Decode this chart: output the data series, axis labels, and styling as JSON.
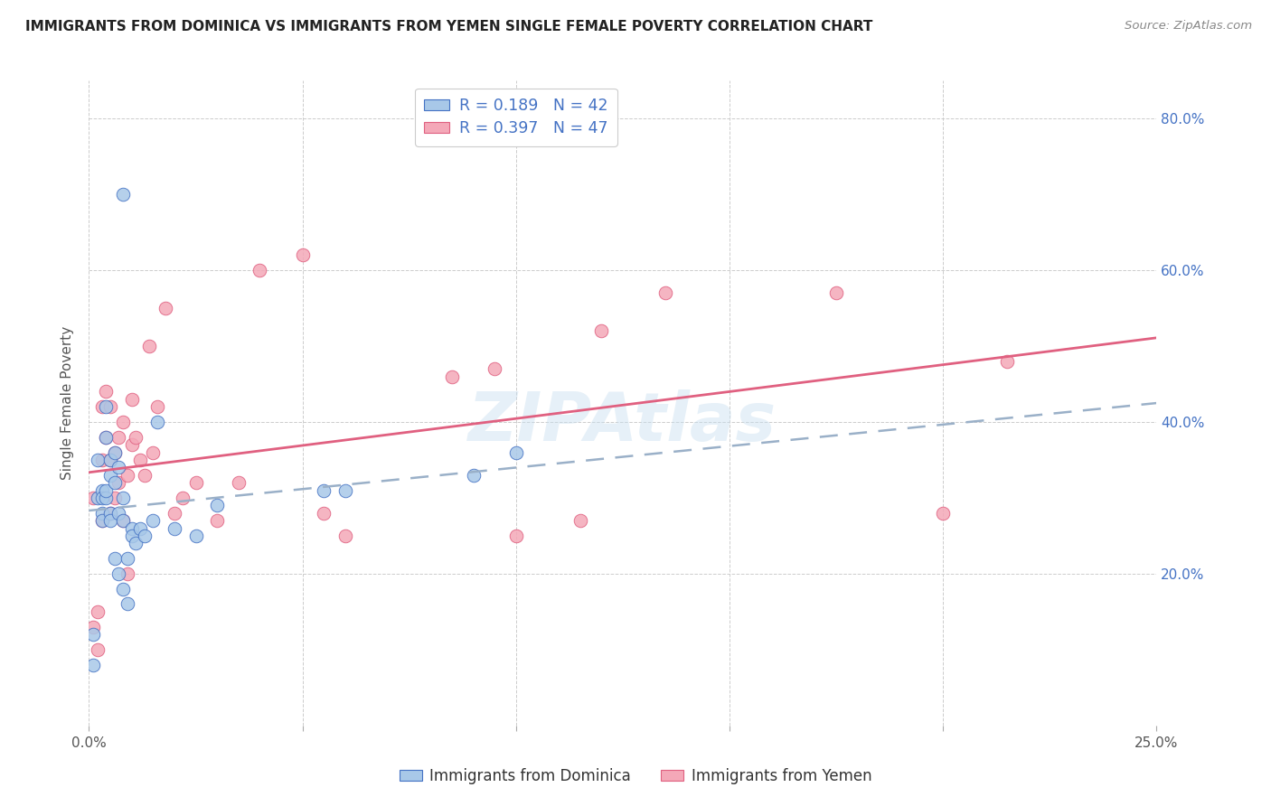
{
  "title": "IMMIGRANTS FROM DOMINICA VS IMMIGRANTS FROM YEMEN SINGLE FEMALE POVERTY CORRELATION CHART",
  "source": "Source: ZipAtlas.com",
  "xlabel_dominica": "Immigrants from Dominica",
  "xlabel_yemen": "Immigrants from Yemen",
  "ylabel": "Single Female Poverty",
  "r_dominica": 0.189,
  "n_dominica": 42,
  "r_yemen": 0.397,
  "n_yemen": 47,
  "xlim": [
    0.0,
    0.25
  ],
  "ylim": [
    0.0,
    0.85
  ],
  "yticks": [
    0.0,
    0.2,
    0.4,
    0.6,
    0.8
  ],
  "xticks": [
    0.0,
    0.05,
    0.1,
    0.15,
    0.2,
    0.25
  ],
  "xtick_labels": [
    "0.0%",
    "",
    "",
    "",
    "",
    "25.0%"
  ],
  "ytick_right_labels": [
    "",
    "20.0%",
    "40.0%",
    "60.0%",
    "80.0%"
  ],
  "color_dominica": "#a8c8e8",
  "color_yemen": "#f4a8b8",
  "line_color_dominica": "#4472c4",
  "line_color_yemen": "#e06080",
  "watermark": "ZIPAtlas",
  "dominica_x": [
    0.001,
    0.001,
    0.002,
    0.002,
    0.003,
    0.003,
    0.003,
    0.003,
    0.004,
    0.004,
    0.004,
    0.004,
    0.005,
    0.005,
    0.005,
    0.005,
    0.006,
    0.006,
    0.006,
    0.007,
    0.007,
    0.007,
    0.008,
    0.008,
    0.008,
    0.009,
    0.009,
    0.01,
    0.01,
    0.011,
    0.012,
    0.013,
    0.015,
    0.016,
    0.02,
    0.025,
    0.03,
    0.055,
    0.06,
    0.09,
    0.1,
    0.008
  ],
  "dominica_y": [
    0.12,
    0.08,
    0.3,
    0.35,
    0.28,
    0.31,
    0.3,
    0.27,
    0.38,
    0.42,
    0.3,
    0.31,
    0.28,
    0.33,
    0.35,
    0.27,
    0.32,
    0.36,
    0.22,
    0.34,
    0.28,
    0.2,
    0.27,
    0.3,
    0.18,
    0.22,
    0.16,
    0.26,
    0.25,
    0.24,
    0.26,
    0.25,
    0.27,
    0.4,
    0.26,
    0.25,
    0.29,
    0.31,
    0.31,
    0.33,
    0.36,
    0.7
  ],
  "yemen_x": [
    0.001,
    0.001,
    0.002,
    0.002,
    0.003,
    0.003,
    0.003,
    0.004,
    0.004,
    0.005,
    0.005,
    0.005,
    0.006,
    0.006,
    0.007,
    0.007,
    0.008,
    0.008,
    0.009,
    0.009,
    0.01,
    0.01,
    0.011,
    0.012,
    0.013,
    0.014,
    0.015,
    0.016,
    0.018,
    0.02,
    0.022,
    0.025,
    0.03,
    0.035,
    0.04,
    0.05,
    0.055,
    0.06,
    0.085,
    0.095,
    0.1,
    0.115,
    0.12,
    0.135,
    0.175,
    0.2,
    0.215
  ],
  "yemen_y": [
    0.13,
    0.3,
    0.1,
    0.15,
    0.27,
    0.35,
    0.42,
    0.44,
    0.38,
    0.28,
    0.35,
    0.42,
    0.36,
    0.3,
    0.38,
    0.32,
    0.4,
    0.27,
    0.33,
    0.2,
    0.37,
    0.43,
    0.38,
    0.35,
    0.33,
    0.5,
    0.36,
    0.42,
    0.55,
    0.28,
    0.3,
    0.32,
    0.27,
    0.32,
    0.6,
    0.62,
    0.28,
    0.25,
    0.46,
    0.47,
    0.25,
    0.27,
    0.52,
    0.57,
    0.57,
    0.28,
    0.48
  ]
}
